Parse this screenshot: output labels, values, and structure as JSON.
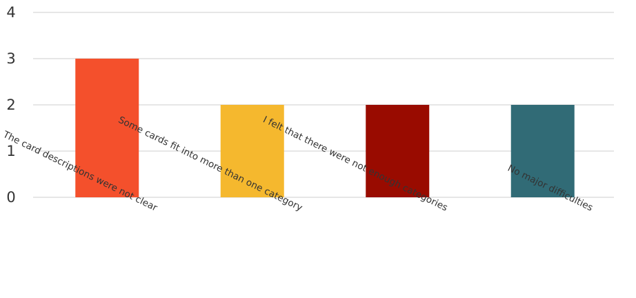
{
  "chart_data": {
    "type": "bar",
    "title": "",
    "xlabel": "",
    "ylabel": "",
    "categories": [
      "The card descriptions were not clear",
      "Some cards fit into more than one category",
      "I felt that there were not enough categories",
      "No major difficulties"
    ],
    "values": [
      3,
      2,
      2,
      2
    ],
    "colors": [
      "#f4502c",
      "#f5b82e",
      "#990b00",
      "#316b76"
    ],
    "ylim": [
      0,
      4
    ],
    "yticks": [
      "0",
      "1",
      "2",
      "3",
      "4"
    ],
    "grid": true,
    "legend": "none"
  }
}
